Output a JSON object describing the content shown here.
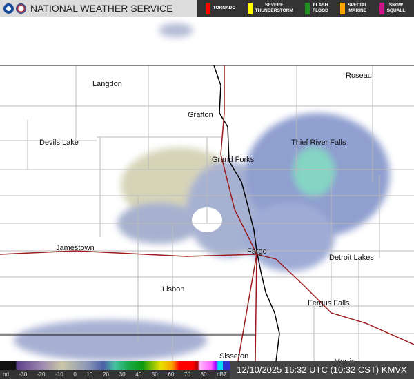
{
  "header": {
    "title": "NATIONAL WEATHER SERVICE",
    "warnings": [
      {
        "label": "TORNADO",
        "color": "#ff0000"
      },
      {
        "label": "SEVERE\nTHUNDERSTORM",
        "color": "#ffff00"
      },
      {
        "label": "FLASH\nFLOOD",
        "color": "#1f8f1f"
      },
      {
        "label": "SPECIAL\nMARINE",
        "color": "#ffa500"
      },
      {
        "label": "SNOW\nSQUALL",
        "color": "#c71585"
      }
    ]
  },
  "cities": [
    "Langdon",
    "Roseau",
    "Grafton",
    "Devils Lake",
    "Thief River Falls",
    "Grand Forks",
    "Jamestown",
    "Fargo",
    "Detroit Lakes",
    "Lisbon",
    "Fergus Falls",
    "Sisseton",
    "Morris"
  ],
  "legend": {
    "ticks": [
      "nd",
      "-30",
      "-20",
      "-10",
      "0",
      "10",
      "20",
      "30",
      "40",
      "50",
      "60",
      "70",
      "80",
      "dBZ"
    ]
  },
  "timestamp": "12/10/2025 16:32 UTC (10:32 CST) KMVX"
}
